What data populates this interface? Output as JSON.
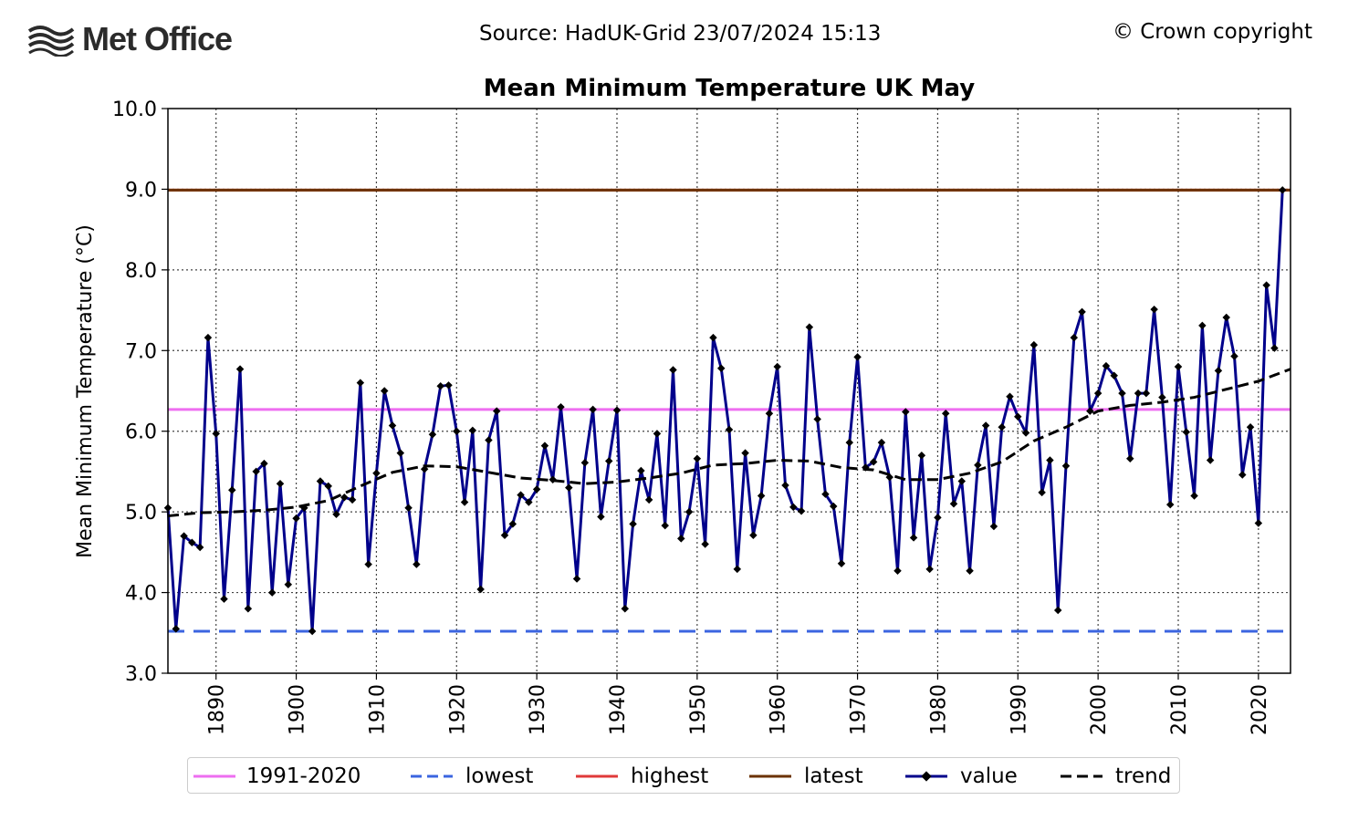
{
  "header": {
    "brand": "Met Office",
    "source": "Source: HadUK-Grid 23/07/2024 15:13",
    "copyright": "© Crown copyright"
  },
  "chart_data": {
    "type": "line",
    "title": "Mean Minimum Temperature UK May",
    "ylabel": "Mean Minimum Temperature (°C)",
    "xlabel": "",
    "xlim": [
      1884,
      2024
    ],
    "ylim": [
      3.0,
      10.0
    ],
    "yticks": [
      "3.0",
      "4.0",
      "5.0",
      "6.0",
      "7.0",
      "8.0",
      "9.0",
      "10.0"
    ],
    "xticks": [
      "1890",
      "1900",
      "1910",
      "1920",
      "1930",
      "1940",
      "1950",
      "1960",
      "1970",
      "1980",
      "1990",
      "2000",
      "2010",
      "2020"
    ],
    "grid": true,
    "legend_position": "bottom",
    "colors": {
      "baseline": "#ee6ef0",
      "lowest": "#3b65e0",
      "highest": "#e03a3a",
      "latest": "#6b3200",
      "value": "#00008b",
      "trend": "#000000"
    },
    "reference_lines": {
      "baseline": 6.27,
      "lowest": 3.52,
      "highest": 8.99,
      "latest": 8.99
    },
    "series": [
      {
        "name": "value",
        "start_year": 1884,
        "values": [
          5.05,
          3.55,
          4.7,
          4.62,
          4.56,
          7.16,
          5.97,
          3.92,
          5.27,
          6.77,
          3.8,
          5.5,
          5.6,
          4.0,
          5.35,
          4.1,
          4.92,
          5.05,
          3.52,
          5.38,
          5.32,
          4.97,
          5.18,
          5.15,
          6.6,
          4.35,
          5.48,
          6.5,
          6.07,
          5.73,
          5.05,
          4.35,
          5.53,
          5.96,
          6.56,
          6.57,
          6.0,
          5.12,
          6.01,
          4.04,
          5.89,
          6.25,
          4.71,
          4.85,
          5.21,
          5.12,
          5.28,
          5.82,
          5.4,
          6.3,
          5.3,
          4.17,
          5.61,
          6.27,
          4.94,
          5.63,
          6.26,
          3.8,
          4.85,
          5.51,
          5.15,
          5.97,
          4.83,
          6.76,
          4.67,
          5.0,
          5.66,
          4.6,
          7.16,
          6.78,
          6.02,
          4.29,
          5.73,
          4.71,
          5.2,
          6.22,
          6.8,
          5.33,
          5.06,
          5.01,
          7.29,
          6.15,
          5.22,
          5.07,
          4.36,
          5.86,
          6.92,
          5.55,
          5.62,
          5.86,
          5.43,
          4.27,
          6.24,
          4.68,
          5.7,
          4.29,
          4.93,
          6.22,
          5.1,
          5.38,
          4.27,
          5.58,
          6.07,
          4.82,
          6.05,
          6.43,
          6.18,
          5.98,
          7.07,
          5.24,
          5.64,
          3.78,
          5.57,
          7.16,
          7.48,
          6.25,
          6.47,
          6.81,
          6.69,
          6.47,
          5.66,
          6.47,
          6.47,
          7.51,
          6.42,
          5.09,
          6.8,
          5.99,
          5.2,
          7.31,
          5.64,
          6.75,
          7.41,
          6.93,
          5.46,
          6.05,
          4.86,
          7.81,
          7.03,
          8.99
        ]
      },
      {
        "name": "trend",
        "x": [
          1884,
          1888,
          1892,
          1896,
          1900,
          1904,
          1908,
          1912,
          1916,
          1920,
          1924,
          1928,
          1932,
          1936,
          1940,
          1944,
          1948,
          1952,
          1956,
          1960,
          1964,
          1968,
          1972,
          1976,
          1980,
          1984,
          1988,
          1992,
          1996,
          2000,
          2004,
          2008,
          2012,
          2016,
          2020,
          2024
        ],
        "values": [
          4.95,
          4.99,
          5.0,
          5.02,
          5.06,
          5.14,
          5.32,
          5.49,
          5.57,
          5.56,
          5.49,
          5.42,
          5.39,
          5.35,
          5.37,
          5.42,
          5.48,
          5.58,
          5.6,
          5.64,
          5.63,
          5.55,
          5.52,
          5.4,
          5.4,
          5.48,
          5.62,
          5.88,
          6.05,
          6.25,
          6.32,
          6.36,
          6.42,
          6.52,
          6.62,
          6.77
        ]
      }
    ],
    "legend": [
      "1991-2020",
      "lowest",
      "highest",
      "latest",
      "value",
      "trend"
    ]
  }
}
